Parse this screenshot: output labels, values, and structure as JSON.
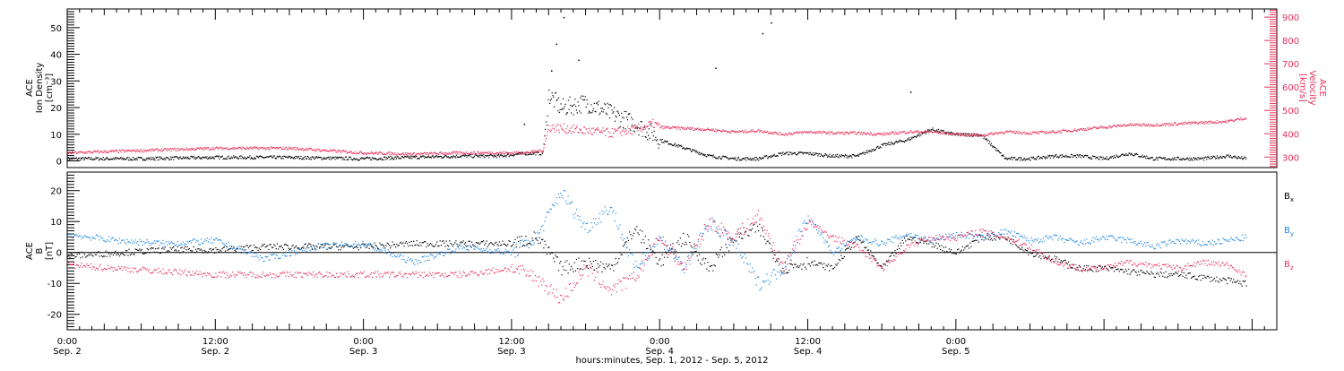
{
  "colors": {
    "black": "#000000",
    "red": "#e8305c",
    "blue": "#1e88e5"
  },
  "panels": {
    "top": {
      "left_axis_label_lines": [
        "ACE",
        "Ion Density",
        "[cm⁻³]"
      ],
      "right_axis_label_lines": [
        "ACE",
        "Velocity",
        "[km/s]"
      ]
    },
    "bottom": {
      "left_axis_label_lines": [
        "ACE",
        "B",
        "[nT]"
      ]
    }
  },
  "xaxis": {
    "ticks": [
      {
        "line1": "0:00",
        "line2": "Sep. 2"
      },
      {
        "line1": "12:00",
        "line2": "Sep. 2"
      },
      {
        "line1": "0:00",
        "line2": "Sep. 3"
      },
      {
        "line1": "12:00",
        "line2": "Sep. 3"
      },
      {
        "line1": "0:00",
        "line2": "Sep. 4"
      },
      {
        "line1": "12:00",
        "line2": "Sep. 4"
      },
      {
        "line1": "0:00",
        "line2": "Sep. 5"
      }
    ],
    "label": "hours:minutes, Sep.  1, 2012 - Sep.  5, 2012"
  },
  "chart_data": [
    {
      "type": "scatter",
      "panel": "top",
      "x_unit": "hours since Sep. 2 0:00",
      "xlim": [
        0,
        98
      ],
      "y_left_label": "Ion Density [cm⁻³]",
      "y_right_label": "Velocity [km/s]",
      "y_left_ticks": [
        0,
        10,
        20,
        30,
        40,
        50
      ],
      "y_right_ticks": [
        300,
        400,
        500,
        600,
        700,
        800,
        900
      ],
      "series": [
        {
          "axis": "left",
          "color": "black",
          "x": [
            0,
            6,
            12,
            18,
            24,
            28,
            32,
            35,
            37,
            38.5,
            39,
            40,
            42,
            44,
            46,
            47.5,
            48,
            50,
            52,
            54,
            56,
            58,
            60,
            62,
            64,
            66,
            68,
            70,
            72,
            74,
            76,
            78,
            80,
            82,
            84,
            86,
            88,
            90,
            92,
            94,
            95.5
          ],
          "y": [
            1,
            1,
            1.5,
            1.5,
            1,
            1.5,
            2,
            2,
            3,
            3,
            25,
            20,
            22,
            18,
            14,
            10,
            8,
            5,
            2,
            1,
            1,
            3,
            3,
            2,
            2,
            6,
            8,
            12,
            10,
            10,
            1,
            1,
            2,
            2,
            1,
            3,
            1,
            1,
            1,
            2,
            1
          ]
        },
        {
          "axis": "right",
          "color": "red",
          "x": [
            0,
            6,
            12,
            18,
            24,
            28,
            32,
            35,
            37,
            38.5,
            39,
            40,
            42,
            44,
            46,
            47.5,
            48,
            50,
            52,
            54,
            56,
            58,
            60,
            62,
            64,
            66,
            68,
            70,
            72,
            74,
            76,
            78,
            80,
            82,
            84,
            86,
            88,
            90,
            92,
            94,
            95.5
          ],
          "y": [
            320,
            330,
            340,
            340,
            320,
            315,
            320,
            320,
            320,
            330,
            430,
            425,
            415,
            405,
            420,
            445,
            430,
            425,
            420,
            410,
            415,
            400,
            410,
            405,
            405,
            400,
            410,
            410,
            400,
            395,
            410,
            405,
            410,
            420,
            430,
            440,
            440,
            445,
            450,
            455,
            470
          ]
        }
      ]
    },
    {
      "type": "scatter",
      "panel": "bottom",
      "x_unit": "hours since Sep. 2 0:00",
      "xlim": [
        0,
        98
      ],
      "ylabel": "B [nT]",
      "y_ticks": [
        -20,
        -10,
        0,
        10,
        20
      ],
      "zero_line": true,
      "series": [
        {
          "name": "Bx",
          "color": "black",
          "x": [
            0,
            4,
            8,
            12,
            16,
            20,
            24,
            28,
            32,
            36,
            38,
            40,
            42,
            44,
            46,
            48,
            50,
            52,
            54,
            56,
            58,
            60,
            62,
            64,
            66,
            68,
            70,
            72,
            74,
            76,
            78,
            80,
            82,
            84,
            86,
            88,
            90,
            92,
            94,
            95.5
          ],
          "y": [
            -1,
            0,
            1,
            1,
            2,
            2,
            2,
            3,
            3,
            3,
            5,
            -5,
            -3,
            -5,
            8,
            -3,
            5,
            -5,
            5,
            8,
            -5,
            -3,
            -5,
            5,
            -5,
            5,
            3,
            0,
            5,
            5,
            0,
            -2,
            -5,
            -5,
            -6,
            -7,
            -7,
            -8,
            -9,
            -10
          ]
        },
        {
          "name": "By",
          "color": "blue",
          "x": [
            0,
            4,
            8,
            12,
            16,
            20,
            24,
            28,
            32,
            36,
            38,
            40,
            42,
            44,
            46,
            48,
            50,
            52,
            54,
            56,
            58,
            60,
            62,
            64,
            66,
            68,
            70,
            72,
            74,
            76,
            78,
            80,
            82,
            84,
            86,
            88,
            90,
            92,
            94,
            95.5
          ],
          "y": [
            6,
            4,
            3,
            4,
            -2,
            2,
            3,
            -3,
            2,
            0,
            5,
            20,
            8,
            15,
            -5,
            5,
            -5,
            10,
            3,
            -10,
            -5,
            12,
            0,
            5,
            3,
            6,
            4,
            6,
            5,
            7,
            4,
            5,
            3,
            5,
            4,
            2,
            4,
            3,
            4,
            5
          ]
        },
        {
          "name": "Bz",
          "color": "red",
          "x": [
            0,
            4,
            8,
            12,
            16,
            20,
            24,
            28,
            32,
            36,
            38,
            40,
            42,
            44,
            46,
            48,
            50,
            52,
            54,
            56,
            58,
            60,
            62,
            64,
            66,
            68,
            70,
            72,
            74,
            76,
            78,
            80,
            82,
            84,
            86,
            88,
            90,
            92,
            94,
            95.5
          ],
          "y": [
            -4,
            -5,
            -6,
            -7,
            -7,
            -7,
            -7,
            -7,
            -7,
            -5,
            -8,
            -15,
            -5,
            -12,
            -8,
            5,
            -5,
            10,
            5,
            12,
            -5,
            10,
            5,
            2,
            -5,
            2,
            5,
            5,
            7,
            5,
            2,
            -3,
            -5,
            -5,
            -3,
            -4,
            -5,
            -3,
            -4,
            -7
          ]
        }
      ],
      "legend_placement": "right"
    }
  ]
}
